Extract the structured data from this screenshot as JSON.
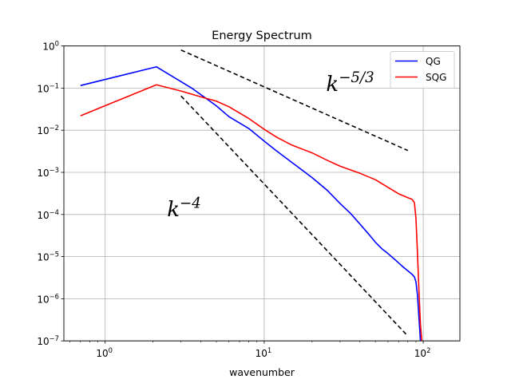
{
  "chart_data": {
    "type": "line",
    "title": "Energy Spectrum",
    "xlabel": "wavenumber",
    "ylabel": "",
    "xscale": "log",
    "yscale": "log",
    "xlim": [
      0.55,
      170
    ],
    "ylim": [
      1e-07,
      1
    ],
    "grid": true,
    "legend_position": "top-right",
    "x_ticks": [
      {
        "value": 1,
        "base": "10",
        "exp": "0"
      },
      {
        "value": 10,
        "base": "10",
        "exp": "1"
      },
      {
        "value": 100,
        "base": "10",
        "exp": "2"
      }
    ],
    "y_ticks": [
      {
        "value": 1e-07,
        "base": "10",
        "exp": "−7"
      },
      {
        "value": 1e-06,
        "base": "10",
        "exp": "−6"
      },
      {
        "value": 1e-05,
        "base": "10",
        "exp": "−5"
      },
      {
        "value": 0.0001,
        "base": "10",
        "exp": "−4"
      },
      {
        "value": 0.001,
        "base": "10",
        "exp": "−3"
      },
      {
        "value": 0.01,
        "base": "10",
        "exp": "−2"
      },
      {
        "value": 0.1,
        "base": "10",
        "exp": "−1"
      },
      {
        "value": 1,
        "base": "10",
        "exp": "0"
      }
    ],
    "series": [
      {
        "name": "QG",
        "color": "#0000ff",
        "x": [
          0.7,
          2.1,
          3.5,
          5.0,
          6.0,
          8.0,
          10,
          12,
          15,
          20,
          25,
          30,
          35,
          40,
          45,
          50,
          55,
          60,
          65,
          70,
          75,
          80,
          85,
          88,
          90,
          92,
          94,
          96
        ],
        "y": [
          0.115,
          0.32,
          0.1,
          0.038,
          0.021,
          0.011,
          0.0055,
          0.0032,
          0.0017,
          0.00075,
          0.00037,
          0.000182,
          0.000105,
          5.9e-05,
          3.55e-05,
          2.2e-05,
          1.53e-05,
          1.18e-05,
          9.1e-06,
          7.1e-06,
          5.6e-06,
          4.6e-06,
          3.8e-06,
          3.3e-06,
          2.5e-06,
          1.2e-06,
          3.5e-07,
          1e-07
        ]
      },
      {
        "name": "SQG",
        "color": "#ff0000",
        "x": [
          0.7,
          2.1,
          3.0,
          4.0,
          5.0,
          6.0,
          8.0,
          10,
          12,
          15,
          20,
          25,
          30,
          40,
          50,
          60,
          70,
          80,
          85,
          88,
          90,
          92,
          94,
          96,
          98
        ],
        "y": [
          0.022,
          0.12,
          0.085,
          0.062,
          0.049,
          0.036,
          0.019,
          0.0105,
          0.0068,
          0.0044,
          0.0029,
          0.00192,
          0.0014,
          0.00095,
          0.00067,
          0.00044,
          0.00031,
          0.00025,
          0.00023,
          0.00019,
          8e-05,
          1.2e-05,
          1.5e-06,
          2.5e-07,
          1e-07
        ]
      }
    ],
    "reference_lines": [
      {
        "label_base": "k",
        "label_exp": "−5/3",
        "x": [
          3.0,
          80
        ],
        "y": [
          0.8,
          0.0033
        ],
        "color": "#000000",
        "style": "dashed"
      },
      {
        "label_base": "k",
        "label_exp": "−4",
        "x": [
          3.0,
          80
        ],
        "y": [
          0.065,
          1.3e-07
        ],
        "color": "#000000",
        "style": "dashed"
      }
    ],
    "annotations": [
      {
        "base": "k",
        "exp": "−5/3",
        "x": 24.5,
        "y": 0.085
      },
      {
        "base": "k",
        "exp": "−4",
        "x": 2.45,
        "y": 9e-05
      }
    ]
  }
}
